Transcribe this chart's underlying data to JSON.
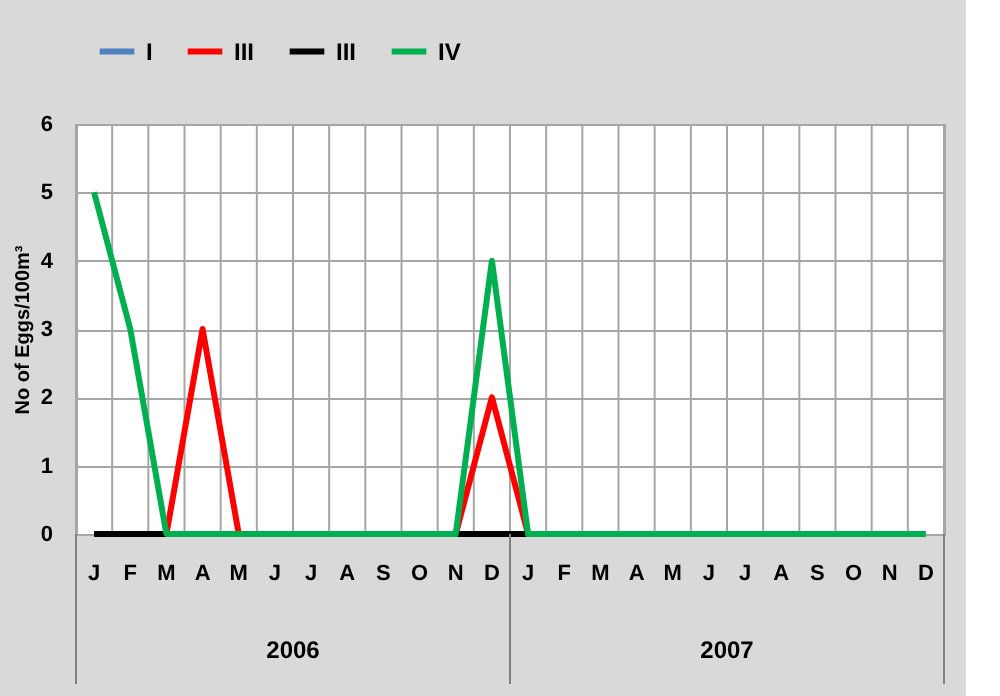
{
  "chart_data": {
    "type": "line",
    "ylabel": "No of Eggs/100m³",
    "categories": [
      "J",
      "F",
      "M",
      "A",
      "M",
      "J",
      "J",
      "A",
      "S",
      "O",
      "N",
      "D",
      "J",
      "F",
      "M",
      "A",
      "M",
      "J",
      "J",
      "A",
      "S",
      "O",
      "N",
      "D"
    ],
    "series": [
      {
        "name": "I",
        "color": "#4f81bd",
        "values": [
          null,
          null,
          null,
          null,
          null,
          null,
          null,
          null,
          null,
          null,
          null,
          null,
          null,
          null,
          null,
          null,
          null,
          null,
          null,
          null,
          null,
          null,
          null,
          null
        ]
      },
      {
        "name": "III",
        "color": "#ff0000",
        "values": [
          null,
          null,
          0,
          3,
          0,
          null,
          null,
          null,
          null,
          null,
          0,
          2,
          0,
          null,
          null,
          null,
          null,
          null,
          null,
          null,
          null,
          null,
          null,
          null
        ]
      },
      {
        "name": "III",
        "color": "#000000",
        "values": [
          0,
          0,
          0,
          null,
          null,
          null,
          null,
          null,
          null,
          null,
          0,
          0,
          0,
          null,
          null,
          null,
          null,
          null,
          null,
          null,
          null,
          null,
          null,
          null
        ]
      },
      {
        "name": "IV",
        "color": "#00b050",
        "values": [
          5,
          3,
          0,
          0,
          0,
          0,
          0,
          0,
          0,
          0,
          0,
          4,
          0,
          0,
          0,
          0,
          0,
          0,
          0,
          0,
          0,
          0,
          0,
          0
        ]
      }
    ],
    "ylim": [
      0,
      6
    ],
    "yticks": [
      0,
      1,
      2,
      3,
      4,
      5,
      6
    ],
    "grid": true,
    "legend": "top",
    "annotations": [
      "2006",
      "2007"
    ]
  }
}
